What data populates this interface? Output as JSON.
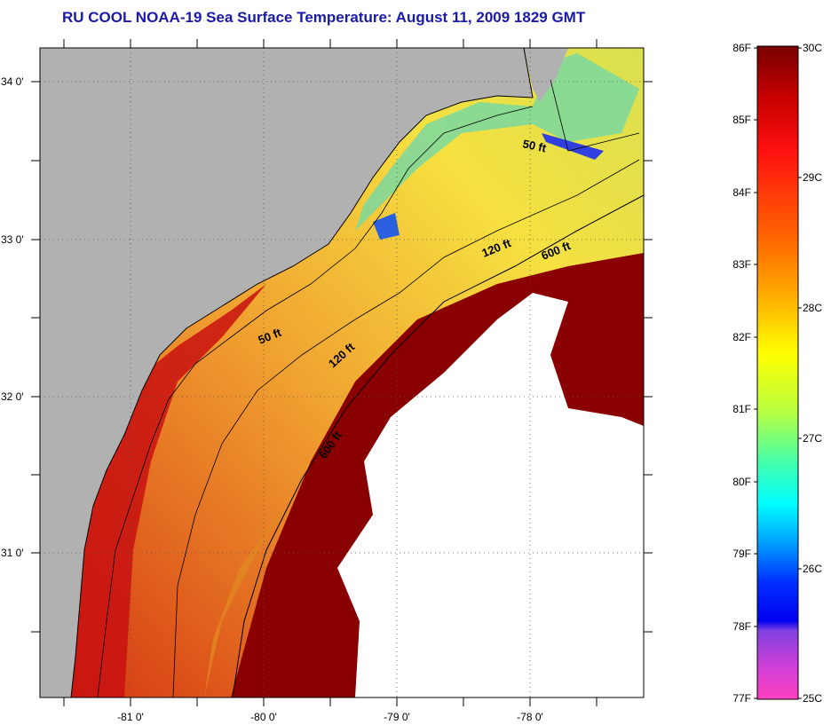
{
  "title": "RU COOL  NOAA-19  Sea Surface Temperature:  August 11, 2009 1829 GMT",
  "map": {
    "lat_labels": [
      "34 0'",
      "33 0'",
      "32 0'",
      "31 0'"
    ],
    "lon_labels": [
      "-81 0'",
      "-80 0'",
      "-79 0'",
      "-78 0'"
    ],
    "contour_labels": [
      {
        "text": "50 ft"
      },
      {
        "text": "120 ft"
      },
      {
        "text": "600 ft"
      },
      {
        "text": "50 ft"
      },
      {
        "text": "120 ft"
      },
      {
        "text": "600 ft"
      }
    ]
  },
  "colorbar": {
    "fahrenheit_labels": [
      "86F",
      "85F",
      "84F",
      "83F",
      "82F",
      "81F",
      "80F",
      "79F",
      "78F",
      "77F"
    ],
    "celsius_labels": [
      "30C",
      "29C",
      "28C",
      "27C",
      "26C",
      "25C"
    ]
  },
  "colors": {
    "land": "#b1b1b1",
    "cloud": "#ffffff",
    "title": "#1a1aa8"
  }
}
